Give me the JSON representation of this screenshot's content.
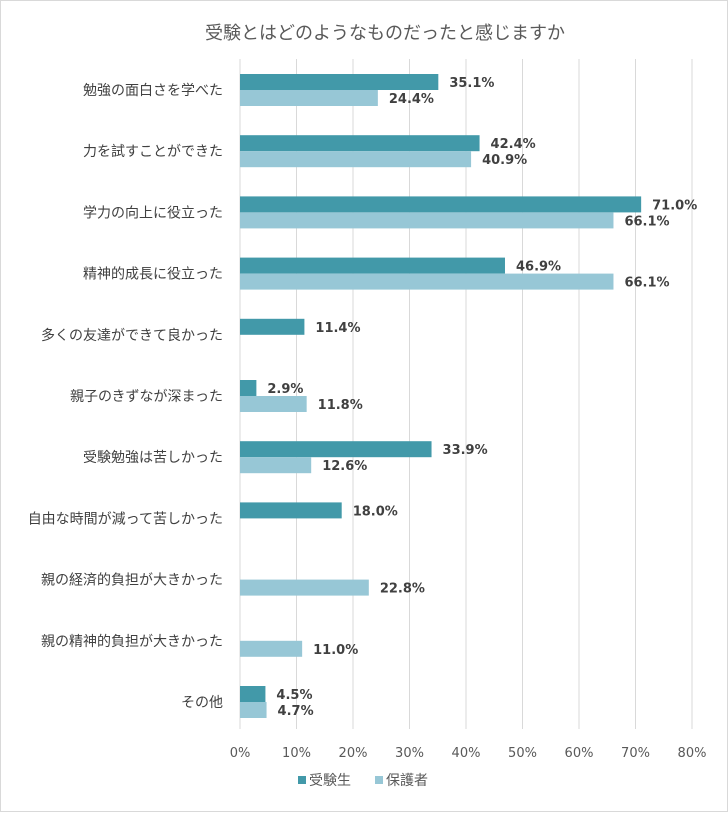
{
  "chart_data": {
    "type": "bar",
    "orientation": "horizontal",
    "title": "受験とはどのようなものだったと感じますか",
    "categories": [
      "勉強の面白さを学べた",
      "力を試すことができた",
      "学力の向上に役立った",
      "精神的成長に役立った",
      "多くの友達ができて良かった",
      "親子のきずなが深まった",
      "受験勉強は苦しかった",
      "自由な時間が減って苦しかった",
      "親の経済的負担が大きかった",
      "親の精神的負担が大きかった",
      "その他"
    ],
    "series": [
      {
        "name": "受験生",
        "color": "#4299a9",
        "values": [
          35.1,
          42.4,
          71.0,
          46.9,
          11.4,
          2.9,
          33.9,
          18.0,
          null,
          null,
          4.5
        ],
        "labels": [
          "35.1%",
          "42.4%",
          "71.0%",
          "46.9%",
          "11.4%",
          "2.9%",
          "33.9%",
          "18.0%",
          null,
          null,
          "4.5%"
        ]
      },
      {
        "name": "保護者",
        "color": "#97c7d6",
        "values": [
          24.4,
          40.9,
          66.1,
          66.1,
          null,
          11.8,
          12.6,
          null,
          22.8,
          11.0,
          4.7
        ],
        "labels": [
          "24.4%",
          "40.9%",
          "66.1%",
          "66.1%",
          null,
          "11.8%",
          "12.6%",
          null,
          "22.8%",
          "11.0%",
          "4.7%"
        ]
      }
    ],
    "xlim": [
      0,
      80
    ],
    "xticks": [
      0,
      10,
      20,
      30,
      40,
      50,
      60,
      70,
      80
    ],
    "xtick_labels": [
      "0%",
      "10%",
      "20%",
      "30%",
      "40%",
      "50%",
      "60%",
      "70%",
      "80%"
    ],
    "grid": true,
    "legend_position": "bottom"
  }
}
